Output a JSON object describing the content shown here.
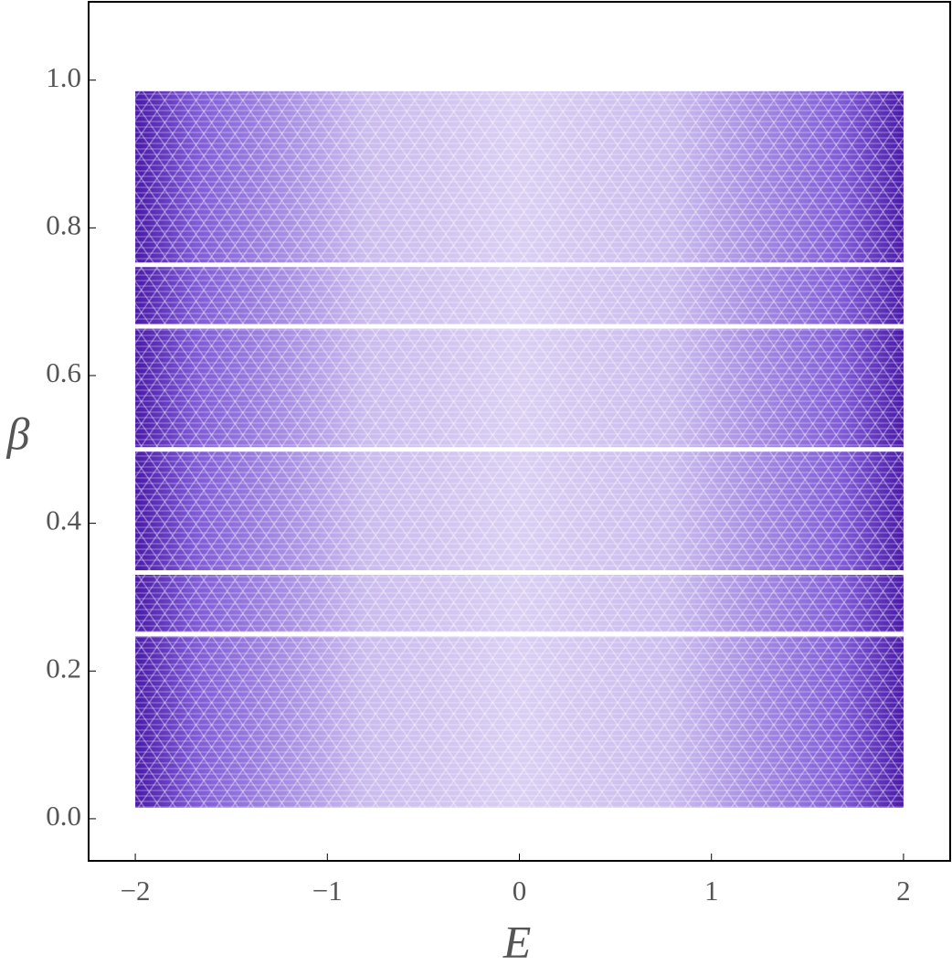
{
  "chart_data": {
    "type": "heatmap",
    "x_label": "E",
    "y_label": "β",
    "x": [
      -2,
      2
    ],
    "y": [
      0.015,
      0.985
    ],
    "gap_lines": [
      0.25,
      0.3333,
      0.5,
      0.6667,
      0.75
    ],
    "color": "#6a3fcf",
    "edge_color": "#4a1aa8",
    "xlim": [
      -2.243,
      2.243
    ],
    "ylim": [
      -0.057,
      1.106
    ],
    "xticks": [
      {
        "value": -2,
        "label": "−2"
      },
      {
        "value": -1,
        "label": "−1"
      },
      0,
      1,
      2
    ],
    "yticks": [
      {
        "value": 0,
        "label": "0.0"
      },
      0.2,
      0.4,
      0.6,
      0.8,
      {
        "value": 1,
        "label": "1.0"
      }
    ]
  }
}
